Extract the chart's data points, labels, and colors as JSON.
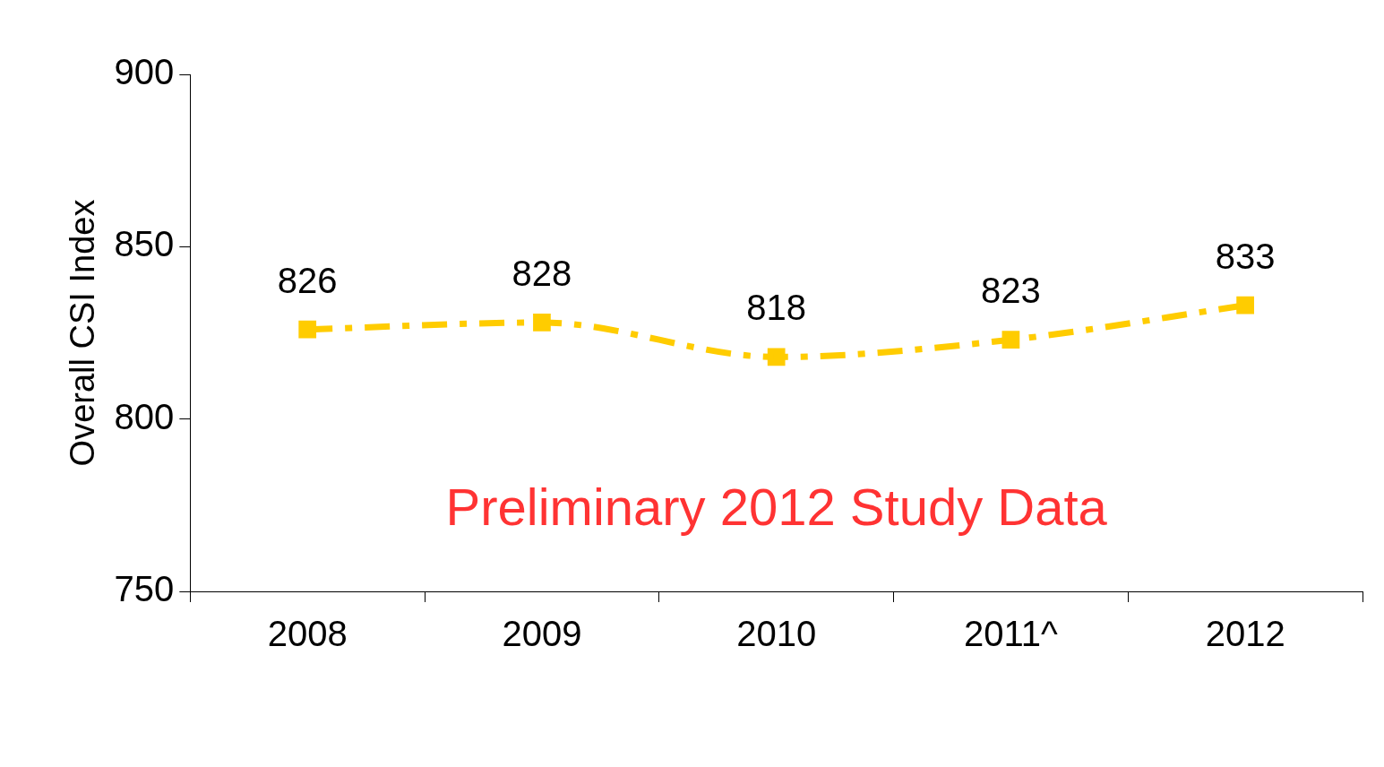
{
  "chart_data": {
    "type": "line",
    "ylabel": "Overall CSI Index",
    "categories": [
      "2008",
      "2009",
      "2010",
      "2011^",
      "2012"
    ],
    "series": [
      {
        "color": "#ffcc00",
        "values": [
          826,
          828,
          818,
          823,
          833
        ]
      }
    ],
    "ylim": [
      750,
      900
    ],
    "yticks": [
      750,
      800,
      850,
      900
    ],
    "grid": false,
    "legend": false,
    "marker": "square",
    "line_style": "dashed",
    "data_labels": true,
    "annotations": [
      "Preliminary 2012 Study Data"
    ]
  }
}
